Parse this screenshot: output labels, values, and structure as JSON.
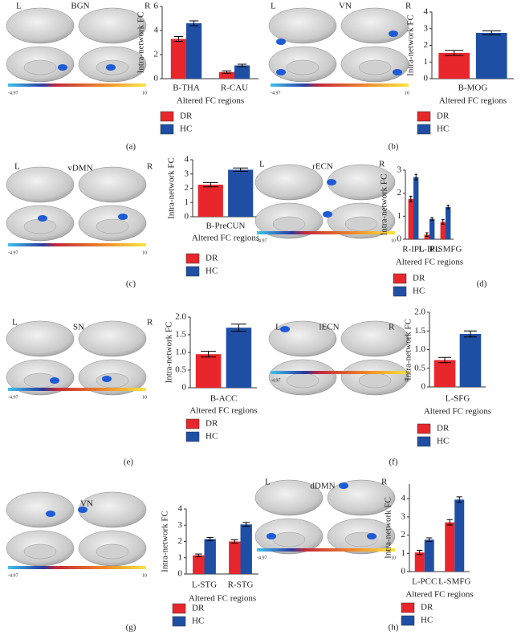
{
  "chart_data": [
    {
      "type": "bar",
      "panel": "(a)",
      "network": "BGN",
      "left_label": "L",
      "right_label": "R",
      "colorbar_ticks": [
        -4.97,
        10
      ],
      "ylabel": "Intra-network FC",
      "xlabel": "Altered FC regions",
      "categories": [
        "B-THA",
        "R-CAU"
      ],
      "series": [
        {
          "name": "DR",
          "color": "#e8262b",
          "values": [
            3.3,
            0.55
          ],
          "errors": [
            0.2,
            0.1
          ]
        },
        {
          "name": "HC",
          "color": "#1f4fa5",
          "values": [
            4.6,
            1.1
          ],
          "errors": [
            0.2,
            0.1
          ]
        }
      ],
      "ylim": [
        0,
        6
      ],
      "yticks": [
        0,
        2,
        4,
        6
      ]
    },
    {
      "type": "bar",
      "panel": "(b)",
      "network": "VN",
      "left_label": "L",
      "right_label": "R",
      "colorbar_ticks": [
        -4.97,
        10
      ],
      "ylabel": "Intra-network FC",
      "xlabel": "Altered FC regions",
      "categories": [
        "B-MOG"
      ],
      "series": [
        {
          "name": "DR",
          "color": "#e8262b",
          "values": [
            1.55
          ],
          "errors": [
            0.15
          ]
        },
        {
          "name": "HC",
          "color": "#1f4fa5",
          "values": [
            2.75
          ],
          "errors": [
            0.12
          ]
        }
      ],
      "ylim": [
        0,
        4
      ],
      "yticks": [
        0,
        1,
        2,
        3,
        4
      ]
    },
    {
      "type": "bar",
      "panel": "(c)",
      "network": "vDMN",
      "left_label": "L",
      "right_label": "R",
      "colorbar_ticks": [
        -4.97,
        10
      ],
      "ylabel": "Intra-network FC",
      "xlabel": "Altered FC regions",
      "categories": [
        "B-PreCUN"
      ],
      "series": [
        {
          "name": "DR",
          "color": "#e8262b",
          "values": [
            2.25
          ],
          "errors": [
            0.15
          ]
        },
        {
          "name": "HC",
          "color": "#1f4fa5",
          "values": [
            3.3
          ],
          "errors": [
            0.12
          ]
        }
      ],
      "ylim": [
        0,
        4
      ],
      "yticks": [
        0,
        1,
        2,
        3,
        4
      ]
    },
    {
      "type": "bar",
      "panel": "(d)",
      "network": "rECN",
      "left_label": "L",
      "right_label": "R",
      "colorbar_ticks": [
        -4.97,
        10
      ],
      "ylabel": "Intra-network FC",
      "xlabel": "Altered FC regions",
      "categories": [
        "R-IPL",
        "L-IPL",
        "R-SMFG"
      ],
      "series": [
        {
          "name": "DR",
          "color": "#e8262b",
          "values": [
            1.75,
            0.2,
            0.75
          ],
          "errors": [
            0.12,
            0.08,
            0.1
          ]
        },
        {
          "name": "HC",
          "color": "#1f4fa5",
          "values": [
            2.7,
            0.88,
            1.4
          ],
          "errors": [
            0.12,
            0.06,
            0.08
          ]
        }
      ],
      "ylim": [
        0,
        3
      ],
      "yticks": [
        0,
        1,
        2,
        3
      ]
    },
    {
      "type": "bar",
      "panel": "(e)",
      "network": "SN",
      "left_label": "L",
      "right_label": "R",
      "colorbar_ticks": [
        -4.97,
        10
      ],
      "ylabel": "Intra-network FC",
      "xlabel": "Altered FC regions",
      "categories": [
        "B-ACC"
      ],
      "series": [
        {
          "name": "DR",
          "color": "#e8262b",
          "values": [
            0.95
          ],
          "errors": [
            0.08
          ]
        },
        {
          "name": "HC",
          "color": "#1f4fa5",
          "values": [
            1.7
          ],
          "errors": [
            0.1
          ]
        }
      ],
      "ylim": [
        0,
        2
      ],
      "yticks": [
        0,
        0.5,
        {
          "value": 1,
          "label": "1.0"
        },
        1.5,
        {
          "value": 2,
          "label": "2.0"
        }
      ]
    },
    {
      "type": "bar",
      "panel": "(f)",
      "network": "lECN",
      "left_label": "L",
      "right_label": "R",
      "colorbar_ticks": [
        -4.97,
        10
      ],
      "ylabel": "Intra-network FC",
      "xlabel": "Altered FC regions",
      "categories": [
        "L-SFG"
      ],
      "series": [
        {
          "name": "DR",
          "color": "#e8262b",
          "values": [
            0.72
          ],
          "errors": [
            0.07
          ]
        },
        {
          "name": "HC",
          "color": "#1f4fa5",
          "values": [
            1.42
          ],
          "errors": [
            0.08
          ]
        }
      ],
      "ylim": [
        0,
        2
      ],
      "yticks": [
        0,
        0.5,
        {
          "value": 1,
          "label": "1.0"
        },
        1.5,
        {
          "value": 2,
          "label": "2.0"
        }
      ]
    },
    {
      "type": "bar",
      "panel": "(g)",
      "network": "VN",
      "colorbar_ticks": [
        -4.97,
        10
      ],
      "ylabel": "Intra-network FC",
      "xlabel": "Altered FC regions",
      "categories": [
        "L-STG",
        "R-STG"
      ],
      "series": [
        {
          "name": "DR",
          "color": "#e8262b",
          "values": [
            1.15,
            2.0
          ],
          "errors": [
            0.08,
            0.1
          ]
        },
        {
          "name": "HC",
          "color": "#1f4fa5",
          "values": [
            2.15,
            3.05
          ],
          "errors": [
            0.1,
            0.12
          ]
        }
      ],
      "ylim": [
        0,
        4
      ],
      "yticks": [
        0,
        1,
        2,
        3,
        4
      ]
    },
    {
      "type": "bar",
      "panel": "(h)",
      "network": "dDMN",
      "left_label": "L",
      "right_label": "R",
      "colorbar_ticks": [
        -4.97,
        10
      ],
      "ylabel": "Intra-network FC",
      "xlabel": "Altered FC regions",
      "categories": [
        "L-PCC",
        "L-SMFG"
      ],
      "series": [
        {
          "name": "DR",
          "color": "#e8262b",
          "values": [
            1.05,
            2.7
          ],
          "errors": [
            0.12,
            0.15
          ]
        },
        {
          "name": "HC",
          "color": "#1f4fa5",
          "values": [
            1.75,
            3.95
          ],
          "errors": [
            0.1,
            0.15
          ]
        }
      ],
      "ylim": [
        0,
        4.8
      ],
      "yticks": [
        0,
        1,
        2,
        3,
        4
      ]
    }
  ]
}
